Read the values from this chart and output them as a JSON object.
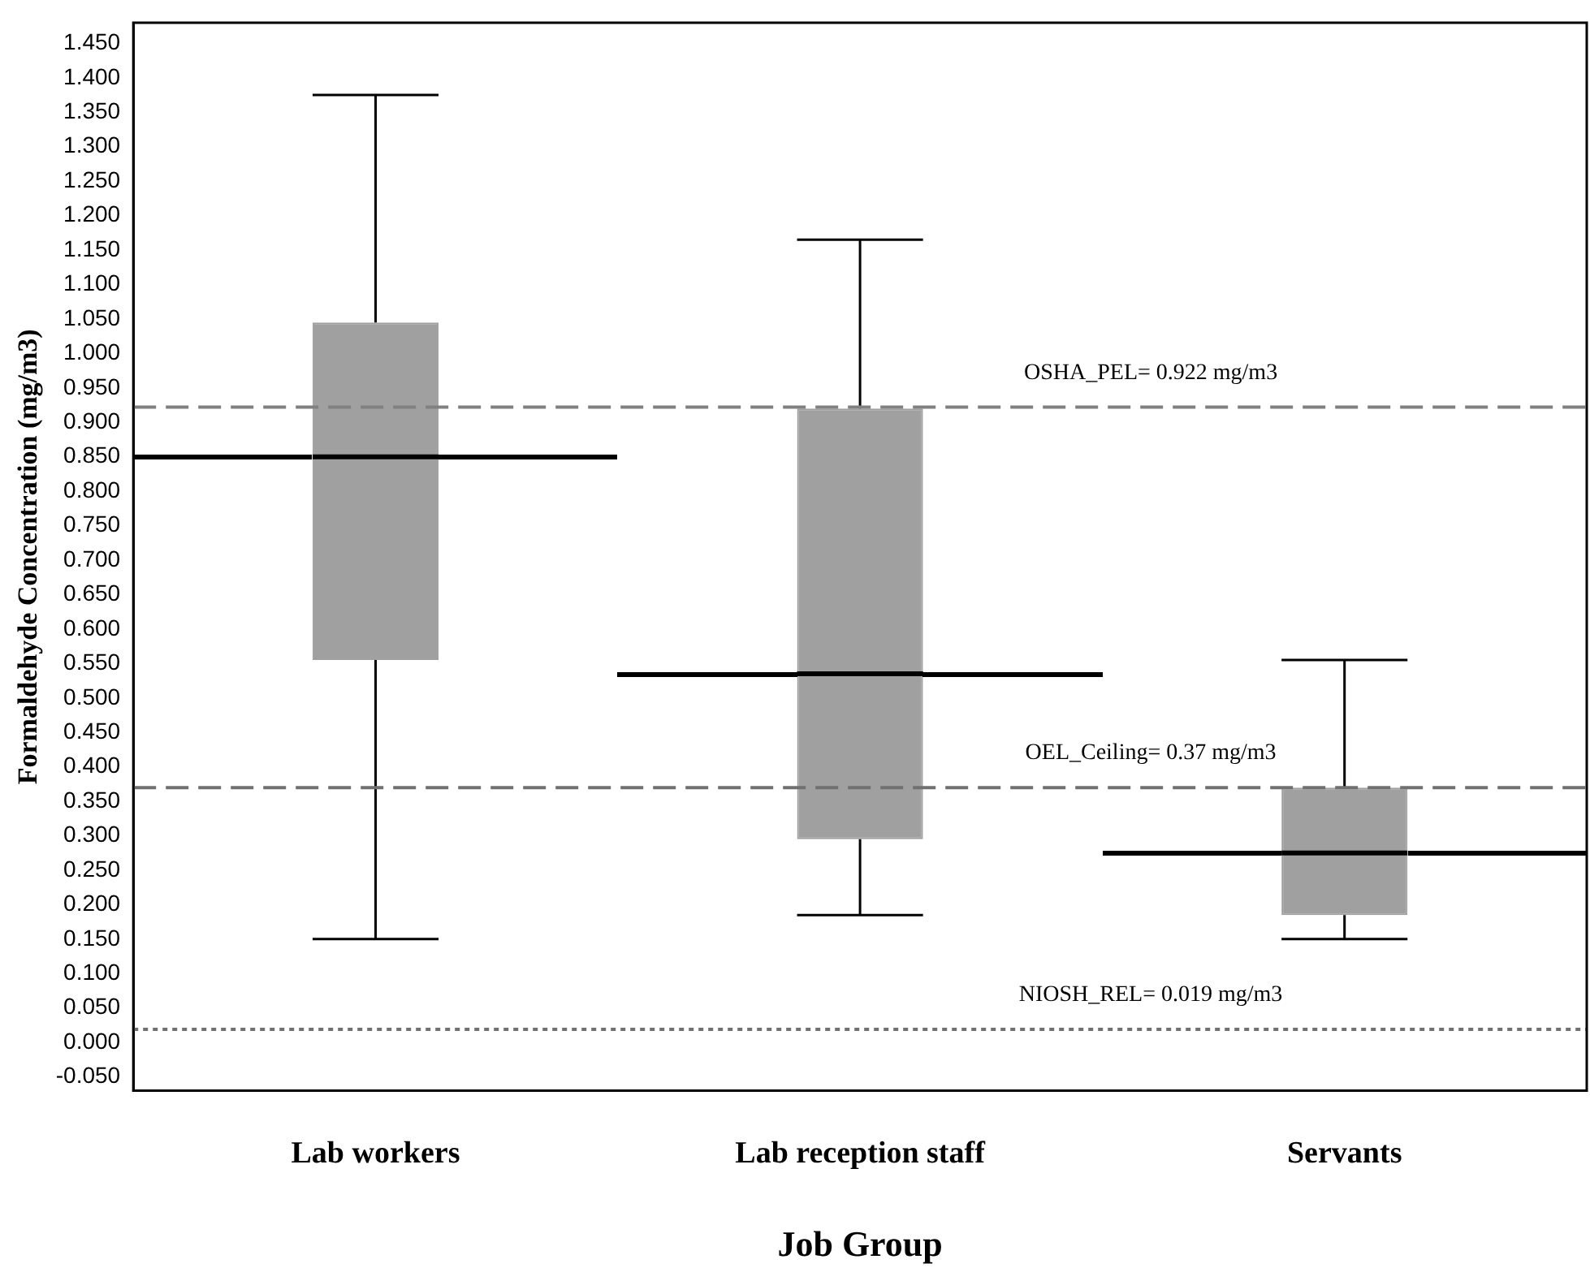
{
  "chart_data": {
    "type": "box",
    "xlabel": "Job Group",
    "ylabel": "Formaldehyde Concentration (mg/m3)",
    "categories": [
      "Lab workers",
      "Lab reception staff",
      "Servants"
    ],
    "color": "#a0a0a0",
    "boxes": [
      {
        "low": 0.15,
        "q1": 0.555,
        "median": 0.85,
        "q3": 1.045,
        "high": 1.375
      },
      {
        "low": 0.185,
        "q1": 0.295,
        "median": 0.535,
        "q3": 0.92,
        "high": 1.165
      },
      {
        "low": 0.15,
        "q1": 0.185,
        "median": 0.275,
        "q3": 0.37,
        "high": 0.555
      }
    ],
    "ylim": [
      -0.07,
      1.48
    ],
    "yticks": [
      {
        "value": -0.05,
        "label": "-0.050"
      },
      {
        "value": 0,
        "label": "0.000"
      },
      {
        "value": 0.05,
        "label": "0.050"
      },
      {
        "value": 0.1,
        "label": "0.100"
      },
      {
        "value": 0.15,
        "label": "0.150"
      },
      {
        "value": 0.2,
        "label": "0.200"
      },
      {
        "value": 0.25,
        "label": "0.250"
      },
      {
        "value": 0.3,
        "label": "0.300"
      },
      {
        "value": 0.35,
        "label": "0.350"
      },
      {
        "value": 0.4,
        "label": "0.400"
      },
      {
        "value": 0.45,
        "label": "0.450"
      },
      {
        "value": 0.5,
        "label": "0.500"
      },
      {
        "value": 0.55,
        "label": "0.550"
      },
      {
        "value": 0.6,
        "label": "0.600"
      },
      {
        "value": 0.65,
        "label": "0.650"
      },
      {
        "value": 0.7,
        "label": "0.700"
      },
      {
        "value": 0.75,
        "label": "0.750"
      },
      {
        "value": 0.8,
        "label": "0.800"
      },
      {
        "value": 0.85,
        "label": "0.850"
      },
      {
        "value": 0.9,
        "label": "0.900"
      },
      {
        "value": 0.95,
        "label": "0.950"
      },
      {
        "value": 1,
        "label": "1.000"
      },
      {
        "value": 1.05,
        "label": "1.050"
      },
      {
        "value": 1.1,
        "label": "1.100"
      },
      {
        "value": 1.15,
        "label": "1.150"
      },
      {
        "value": 1.2,
        "label": "1.200"
      },
      {
        "value": 1.25,
        "label": "1.250"
      },
      {
        "value": 1.3,
        "label": "1.300"
      },
      {
        "value": 1.35,
        "label": "1.350"
      },
      {
        "value": 1.4,
        "label": "1.400"
      },
      {
        "value": 1.45,
        "label": "1.450"
      }
    ],
    "ref_lines": [
      {
        "axis": "y",
        "value": 0.922,
        "label": "OSHA_PEL= 0.922 mg/m3",
        "color": "#808080",
        "line_style": "dashed"
      },
      {
        "axis": "y",
        "value": 0.37,
        "label": "OEL_Ceiling= 0.37 mg/m3",
        "color": "#707070",
        "line_style": "dashed"
      },
      {
        "axis": "y",
        "value": 0.019,
        "label": "NIOSH_REL= 0.019 mg/m3",
        "color": "#707070",
        "line_style": "dotted"
      }
    ],
    "grid": false,
    "legend": false
  }
}
